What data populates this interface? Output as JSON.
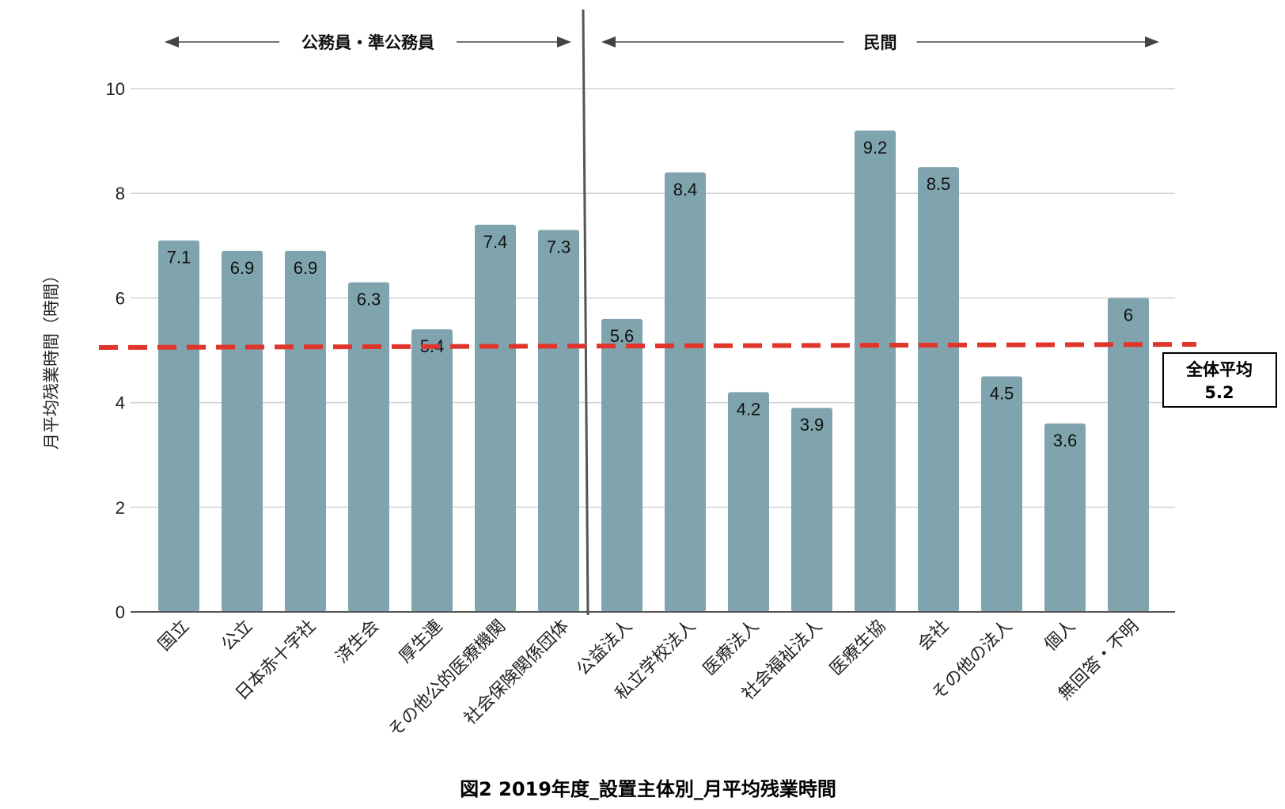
{
  "chart_data": {
    "type": "bar",
    "title": "図2  2019年度_設置主体別_月平均残業時間",
    "ylabel": "月平均残業時間（時間）",
    "xlabel": "",
    "ylim": [
      0,
      10
    ],
    "yticks": [
      0,
      2,
      4,
      6,
      8,
      10
    ],
    "grid": true,
    "categories": [
      "国立",
      "公立",
      "日本赤十字社",
      "済生会",
      "厚生連",
      "その他公的医療機関",
      "社会保険関係団体",
      "公益法人",
      "私立学校法人",
      "医療法人",
      "社会福祉法人",
      "医療生協",
      "会社",
      "その他の法人",
      "個人",
      "無回答・不明"
    ],
    "values": [
      7.1,
      6.9,
      6.9,
      6.3,
      5.4,
      7.4,
      7.3,
      5.6,
      8.4,
      4.2,
      3.9,
      9.2,
      8.5,
      4.5,
      3.6,
      6
    ],
    "data_labels": [
      "7.1",
      "6.9",
      "6.9",
      "6.3",
      "5.4",
      "7.4",
      "7.3",
      "5.6",
      "8.4",
      "4.2",
      "3.9",
      "9.2",
      "8.5",
      "4.5",
      "3.6",
      "6"
    ],
    "bar_color": "#7fa4ad",
    "groups": [
      {
        "label": "公務員・準公務員",
        "from": 0,
        "to": 6
      },
      {
        "label": "民間",
        "from": 7,
        "to": 15
      }
    ],
    "average": {
      "value": 5.2,
      "title": "全体平均",
      "value_label": "5.2",
      "color": "#e0352b"
    }
  }
}
